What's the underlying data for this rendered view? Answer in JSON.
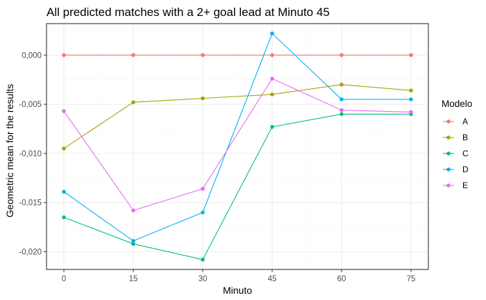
{
  "chart_data": {
    "type": "line",
    "title": "All predicted matches with a 2+ goal lead at Minuto 45",
    "xlabel": "Minuto",
    "ylabel": "Geometric mean for the results",
    "x": [
      0,
      15,
      30,
      45,
      60,
      75
    ],
    "x_ticks": [
      {
        "value": 0,
        "label": "0"
      },
      {
        "value": 15,
        "label": "15"
      },
      {
        "value": 30,
        "label": "30"
      },
      {
        "value": 45,
        "label": "45"
      },
      {
        "value": 60,
        "label": "60"
      },
      {
        "value": 75,
        "label": "75"
      }
    ],
    "y_ticks": [
      {
        "value": 0.0,
        "label": "0,000"
      },
      {
        "value": -0.005,
        "label": "-0,005"
      },
      {
        "value": -0.01,
        "label": "-0,010"
      },
      {
        "value": -0.015,
        "label": "-0,015"
      },
      {
        "value": -0.02,
        "label": "-0,020"
      }
    ],
    "xlim": [
      -3.75,
      78.75
    ],
    "ylim": [
      -0.0218,
      0.0032
    ],
    "grid": true,
    "legend": {
      "title": "Modelo",
      "position": "right"
    },
    "series": [
      {
        "name": "A",
        "color": "#F8766D",
        "values": [
          0.0,
          0.0,
          0.0,
          0.0,
          0.0,
          0.0
        ]
      },
      {
        "name": "B",
        "color": "#A3A500",
        "values": [
          -0.0095,
          -0.0048,
          -0.0044,
          -0.004,
          -0.003,
          -0.0036
        ]
      },
      {
        "name": "C",
        "color": "#00BF7D",
        "values": [
          -0.0165,
          -0.0192,
          -0.0208,
          -0.0073,
          -0.006,
          -0.006
        ]
      },
      {
        "name": "D",
        "color": "#00B0F6",
        "values": [
          -0.0139,
          -0.0189,
          -0.016,
          0.0022,
          -0.0045,
          -0.0045
        ]
      },
      {
        "name": "E",
        "color": "#E76BF3",
        "values": [
          -0.0057,
          -0.0158,
          -0.0136,
          -0.0024,
          -0.0056,
          -0.0058
        ]
      }
    ]
  }
}
